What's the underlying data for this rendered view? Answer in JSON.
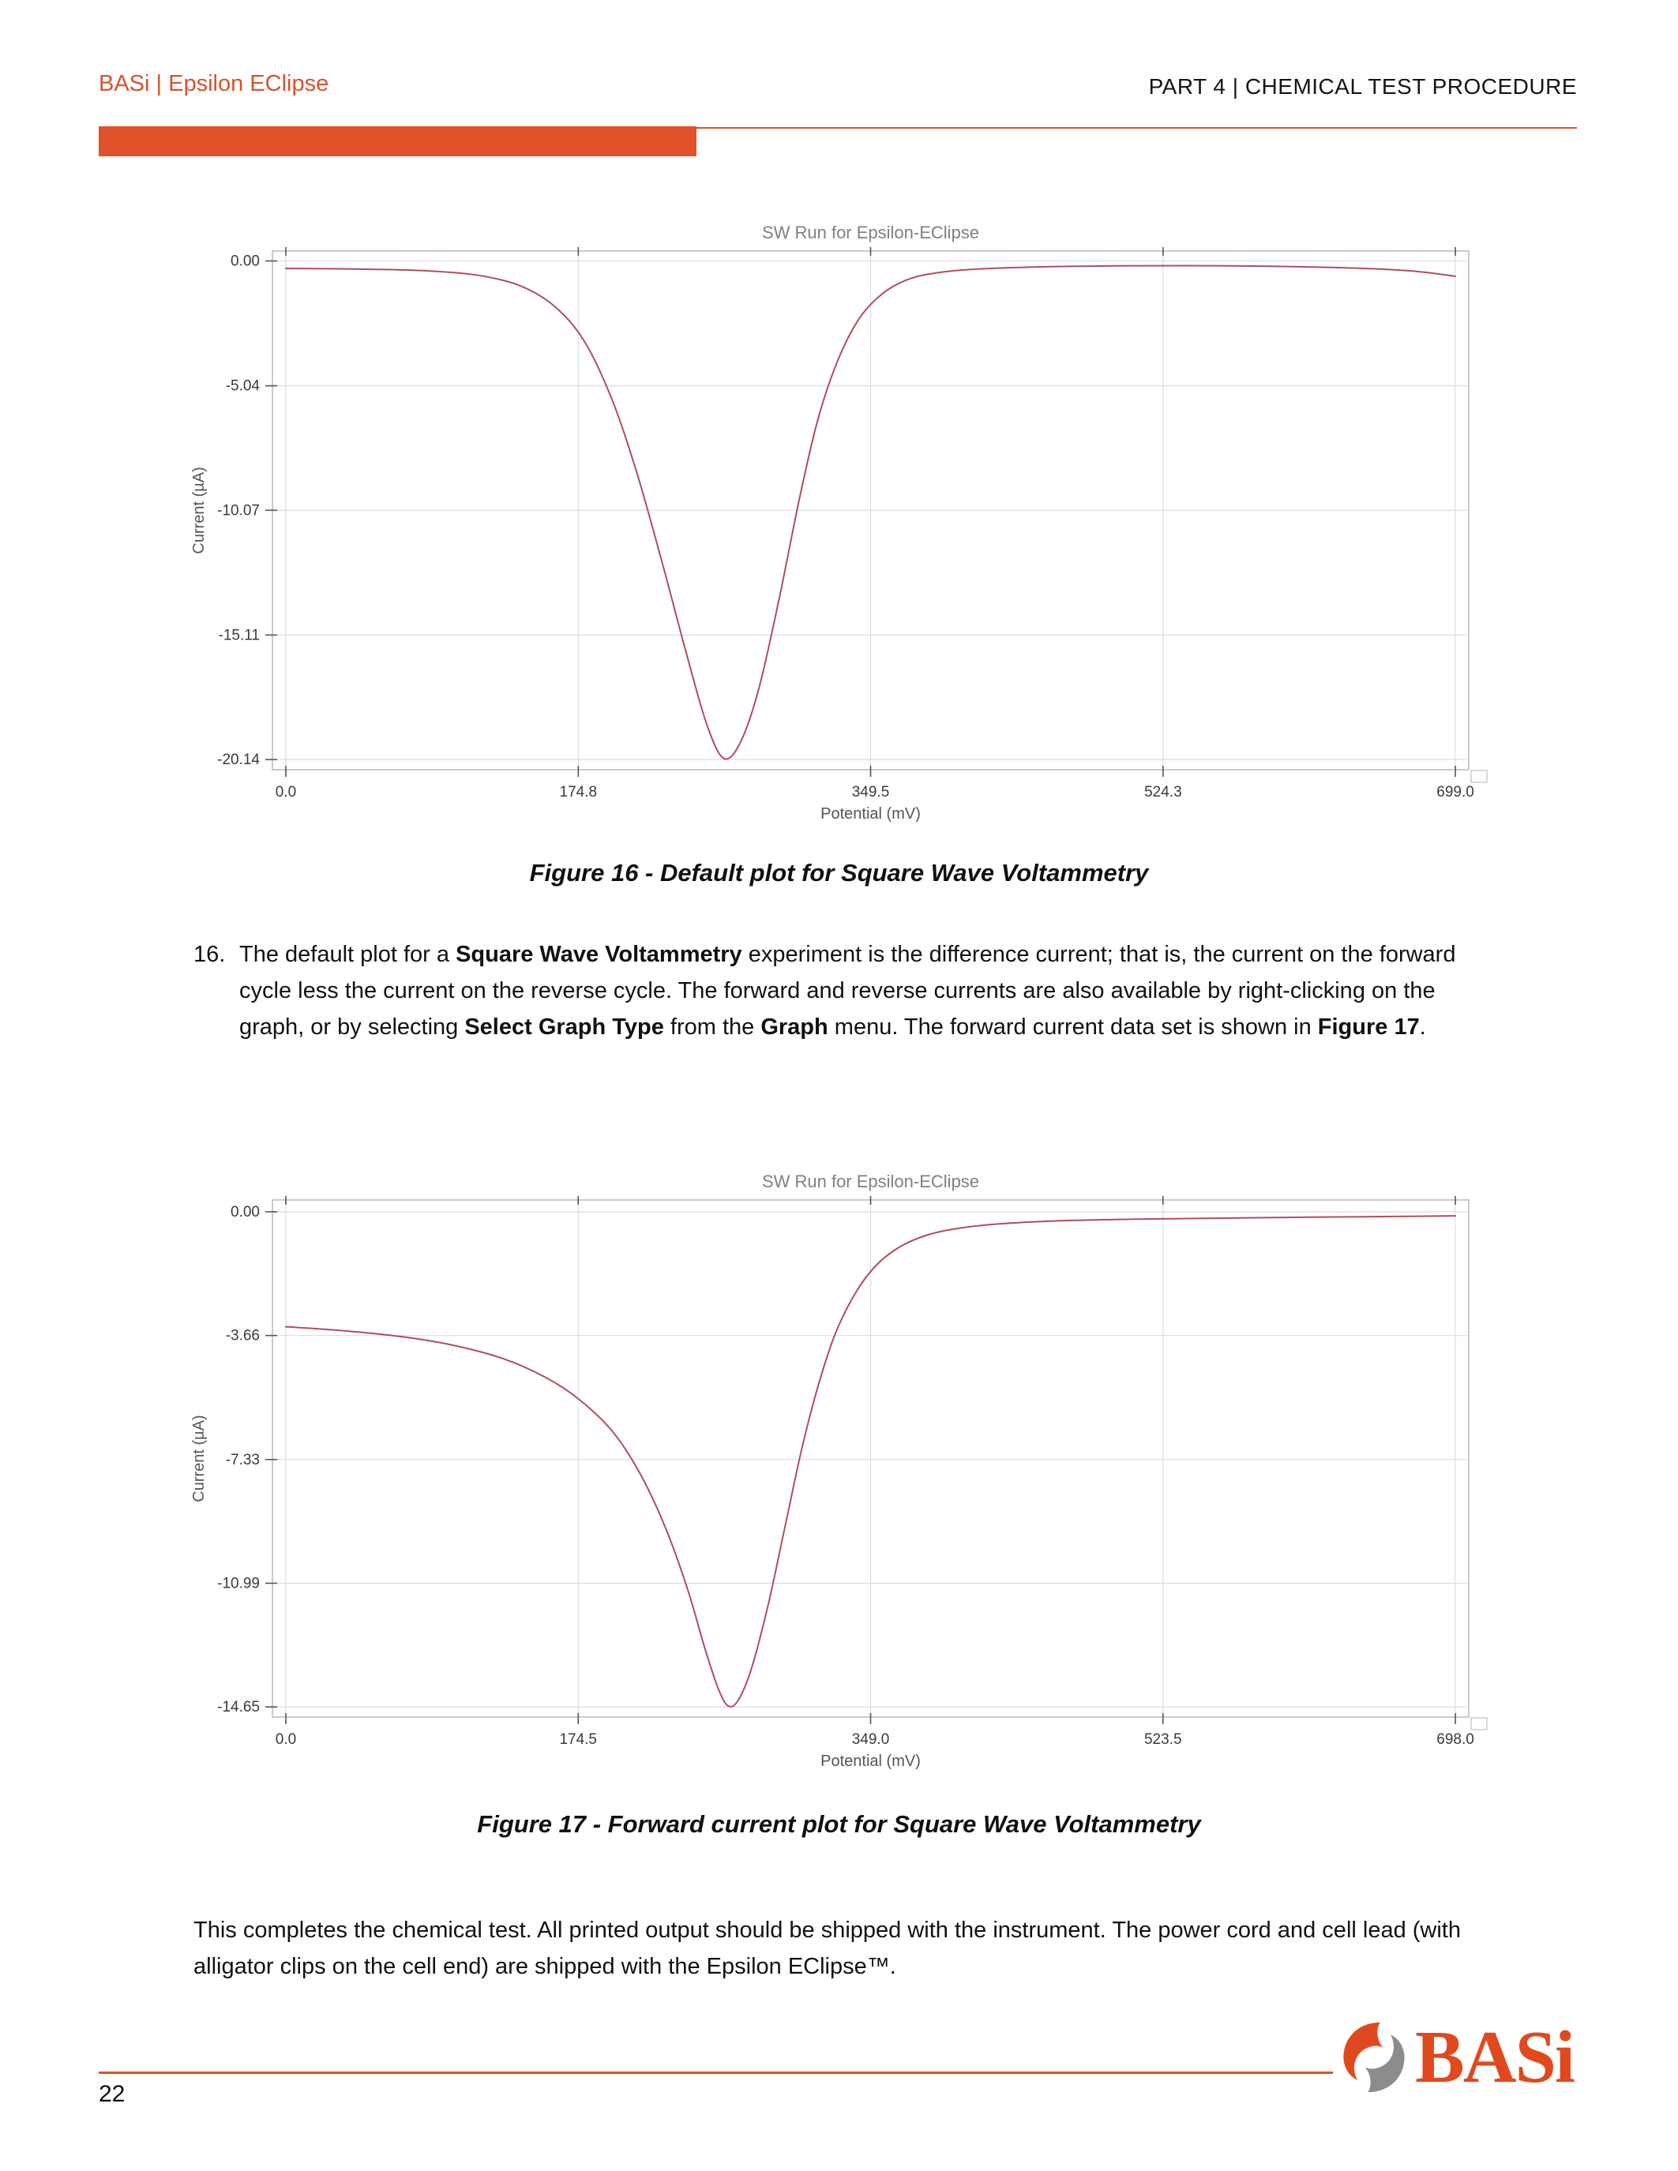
{
  "header": {
    "left": "BASi | Epsilon EClipse",
    "right": "PART 4 | CHEMICAL TEST PROCEDURE"
  },
  "colors": {
    "accent_orange": "#DD5227",
    "logo_orange": "#E0491E",
    "logo_gray": "#8C8C8C",
    "chart_line_red": "#B24D5C"
  },
  "figures": [
    {
      "caption": "Figure 16 - Default plot for Square Wave Voltammetry"
    },
    {
      "caption": "Figure 17 - Forward current plot for Square Wave Voltammetry"
    }
  ],
  "list_item": {
    "number": "16.",
    "segments": [
      {
        "text": "The default plot for a ",
        "bold": false
      },
      {
        "text": "Square Wave Voltammetry",
        "bold": true
      },
      {
        "text": " experiment is the difference current; that is, the current on the forward cycle less the current on the reverse cycle. The forward and reverse currents are also available by right-clicking on the graph, or by selecting ",
        "bold": false
      },
      {
        "text": "Select Graph Type",
        "bold": true
      },
      {
        "text": " from the ",
        "bold": false
      },
      {
        "text": "Graph",
        "bold": true
      },
      {
        "text": " menu. The forward current data set is shown in ",
        "bold": false
      },
      {
        "text": "Figure 17",
        "bold": true
      },
      {
        "text": ".",
        "bold": false
      }
    ]
  },
  "closing_paragraph": "This completes the chemical test. All printed output should be shipped with the instrument. The power cord and cell lead (with alligator clips on the cell end) are shipped with the Epsilon EClipse™.",
  "footer": {
    "page_number": "22",
    "logo_text": "BASi"
  },
  "chart_data": [
    {
      "type": "line",
      "title": "SW Run for Epsilon-EClipse",
      "xlabel": "Potential (mV)",
      "ylabel": "Current (µA)",
      "xlim": [
        -8,
        707
      ],
      "ylim": [
        -20.55,
        0.4
      ],
      "xtick_values": [
        0,
        174.8,
        349.5,
        524.3,
        699
      ],
      "xtick_labels": [
        "0.0",
        "174.8",
        "349.5",
        "524.3",
        "699.0"
      ],
      "ytick_values": [
        0,
        -5.04,
        -10.07,
        -15.11,
        -20.14
      ],
      "ytick_labels": [
        "0.00",
        "-5.04",
        "-10.07",
        "-15.11",
        "-20.14"
      ],
      "grid": true,
      "legend": "none",
      "line_color": "#B24D5C",
      "points": [
        [
          0,
          -0.3
        ],
        [
          45,
          -0.33
        ],
        [
          85,
          -0.4
        ],
        [
          115,
          -0.58
        ],
        [
          140,
          -1.0
        ],
        [
          160,
          -1.8
        ],
        [
          178,
          -3.2
        ],
        [
          195,
          -5.6
        ],
        [
          210,
          -8.6
        ],
        [
          225,
          -12.2
        ],
        [
          240,
          -16.0
        ],
        [
          252,
          -18.8
        ],
        [
          262,
          -20.1
        ],
        [
          272,
          -19.4
        ],
        [
          283,
          -17.2
        ],
        [
          295,
          -13.6
        ],
        [
          307,
          -9.6
        ],
        [
          318,
          -6.4
        ],
        [
          330,
          -4.0
        ],
        [
          343,
          -2.3
        ],
        [
          357,
          -1.3
        ],
        [
          373,
          -0.72
        ],
        [
          392,
          -0.45
        ],
        [
          415,
          -0.32
        ],
        [
          450,
          -0.24
        ],
        [
          495,
          -0.2
        ],
        [
          540,
          -0.19
        ],
        [
          585,
          -0.21
        ],
        [
          625,
          -0.26
        ],
        [
          658,
          -0.34
        ],
        [
          680,
          -0.45
        ],
        [
          699,
          -0.62
        ]
      ]
    },
    {
      "type": "line",
      "title": "SW Run for Epsilon-EClipse",
      "xlabel": "Potential (mV)",
      "ylabel": "Current (µA)",
      "xlim": [
        -8,
        706
      ],
      "ylim": [
        -14.95,
        0.35
      ],
      "xtick_values": [
        0,
        174.5,
        349,
        523.5,
        698
      ],
      "xtick_labels": [
        "0.0",
        "174.5",
        "349.0",
        "523.5",
        "698.0"
      ],
      "ytick_values": [
        0,
        -3.66,
        -7.33,
        -10.99,
        -14.65
      ],
      "ytick_labels": [
        "0.00",
        "-3.66",
        "-7.33",
        "-10.99",
        "-14.65"
      ],
      "grid": true,
      "legend": "none",
      "line_color": "#B24D5C",
      "points": [
        [
          0,
          -3.4
        ],
        [
          35,
          -3.52
        ],
        [
          70,
          -3.7
        ],
        [
          100,
          -3.95
        ],
        [
          130,
          -4.35
        ],
        [
          155,
          -4.9
        ],
        [
          175,
          -5.55
        ],
        [
          195,
          -6.5
        ],
        [
          212,
          -7.8
        ],
        [
          227,
          -9.4
        ],
        [
          240,
          -11.2
        ],
        [
          250,
          -12.9
        ],
        [
          258,
          -14.1
        ],
        [
          264,
          -14.62
        ],
        [
          270,
          -14.45
        ],
        [
          278,
          -13.5
        ],
        [
          288,
          -11.6
        ],
        [
          298,
          -9.3
        ],
        [
          308,
          -7.0
        ],
        [
          318,
          -5.1
        ],
        [
          328,
          -3.6
        ],
        [
          340,
          -2.4
        ],
        [
          352,
          -1.6
        ],
        [
          366,
          -1.05
        ],
        [
          382,
          -0.7
        ],
        [
          400,
          -0.5
        ],
        [
          425,
          -0.36
        ],
        [
          460,
          -0.27
        ],
        [
          505,
          -0.22
        ],
        [
          555,
          -0.19
        ],
        [
          610,
          -0.16
        ],
        [
          655,
          -0.14
        ],
        [
          698,
          -0.12
        ]
      ]
    }
  ]
}
